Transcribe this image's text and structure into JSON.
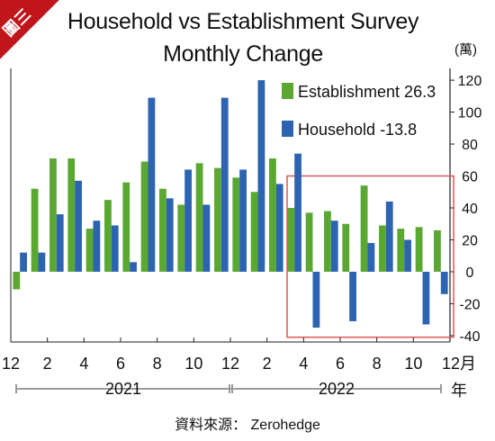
{
  "corner_tag": "圖三",
  "chart_data": {
    "type": "bar",
    "title": "Household vs Establishment Survey",
    "subtitle": "Monthly Change",
    "unit_label": "(萬)",
    "categories": [
      "2020-12",
      "2021-01",
      "2021-02",
      "2021-03",
      "2021-04",
      "2021-05",
      "2021-06",
      "2021-07",
      "2021-08",
      "2021-09",
      "2021-10",
      "2021-11",
      "2021-12",
      "2022-01",
      "2022-02",
      "2022-03",
      "2022-04",
      "2022-05",
      "2022-06",
      "2022-07",
      "2022-08",
      "2022-09",
      "2022-10",
      "2022-11"
    ],
    "x_tick_labels": [
      "12",
      "2",
      "4",
      "6",
      "8",
      "10",
      "12",
      "2",
      "4",
      "6",
      "8",
      "10",
      "12月"
    ],
    "year_labels": [
      "2021",
      "2022"
    ],
    "year_suffix": "年",
    "series": [
      {
        "name": "Establishment 26.3",
        "color": "#5aa832",
        "values": [
          -11,
          52,
          71,
          71,
          27,
          45,
          56,
          69,
          52,
          42,
          68,
          65,
          59,
          50,
          71,
          40,
          37,
          38,
          30,
          54,
          29,
          27,
          28,
          26
        ]
      },
      {
        "name": "Household -13.8",
        "color": "#2d64b2",
        "values": [
          12,
          12,
          36,
          57,
          32,
          29,
          6,
          109,
          46,
          64,
          42,
          109,
          64,
          120,
          55,
          74,
          -35,
          32,
          -31,
          18,
          44,
          20,
          -33,
          -14
        ]
      }
    ],
    "legend_position": "top-right",
    "y_ticks": [
      -40,
      -20,
      0,
      20,
      40,
      60,
      80,
      100,
      120
    ],
    "ylim": [
      -44,
      124
    ],
    "highlight_box": {
      "from": "2022-03",
      "to": "2022-11",
      "color": "#e05555"
    }
  },
  "source_text": "資料來源：  Zerohedge"
}
